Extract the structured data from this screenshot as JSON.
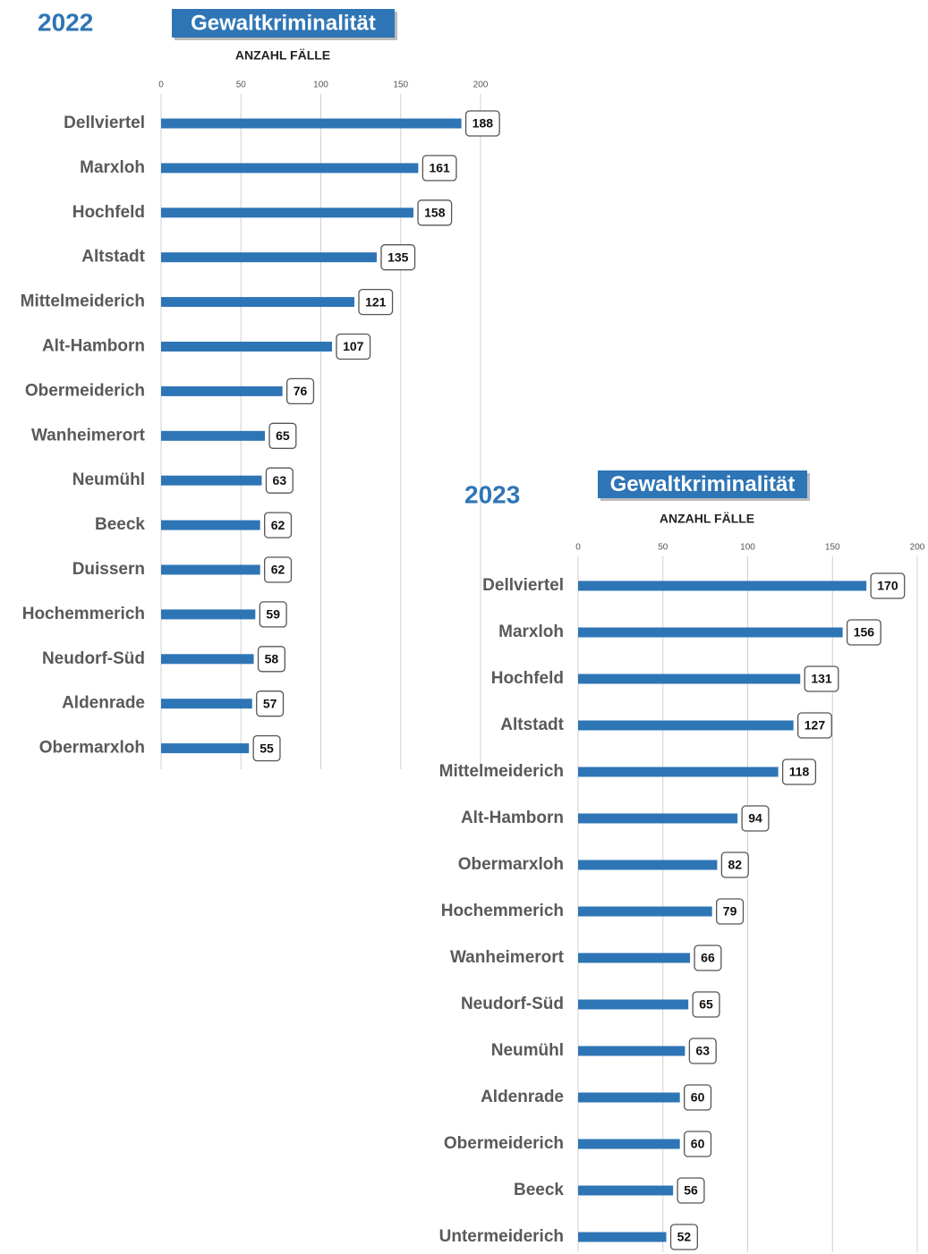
{
  "chart_data": [
    {
      "type": "bar",
      "orientation": "horizontal",
      "year": "2022",
      "title": "Gewaltkriminalität",
      "axis_label": "ANZAHL FÄLLE",
      "categories": [
        "Dellviertel",
        "Marxloh",
        "Hochfeld",
        "Altstadt",
        "Mittelmeiderich",
        "Alt-Hamborn",
        "Obermeiderich",
        "Wanheimerort",
        "Neumühl",
        "Beeck",
        "Duissern",
        "Hochemmerich",
        "Neudorf-Süd",
        "Aldenrade",
        "Obermarxloh"
      ],
      "values": [
        188,
        161,
        158,
        135,
        121,
        107,
        76,
        65,
        63,
        62,
        62,
        59,
        58,
        57,
        55
      ],
      "color": "#2e75b6",
      "xlim": [
        0,
        200
      ],
      "xticks": [
        0,
        50,
        100,
        150,
        200
      ],
      "grid": true
    },
    {
      "type": "bar",
      "orientation": "horizontal",
      "year": "2023",
      "title": "Gewaltkriminalität",
      "axis_label": "ANZAHL FÄLLE",
      "categories": [
        "Dellviertel",
        "Marxloh",
        "Hochfeld",
        "Altstadt",
        "Mittelmeiderich",
        "Alt-Hamborn",
        "Obermarxloh",
        "Hochemmerich",
        "Wanheimerort",
        "Neudorf-Süd",
        "Neumühl",
        "Aldenrade",
        "Obermeiderich",
        "Beeck",
        "Untermeiderich"
      ],
      "values": [
        170,
        156,
        131,
        127,
        118,
        94,
        82,
        79,
        66,
        65,
        63,
        60,
        60,
        56,
        52
      ],
      "color": "#2e75b6",
      "xlim": [
        0,
        200
      ],
      "xticks": [
        0,
        50,
        100,
        150,
        200
      ],
      "grid": true
    }
  ]
}
